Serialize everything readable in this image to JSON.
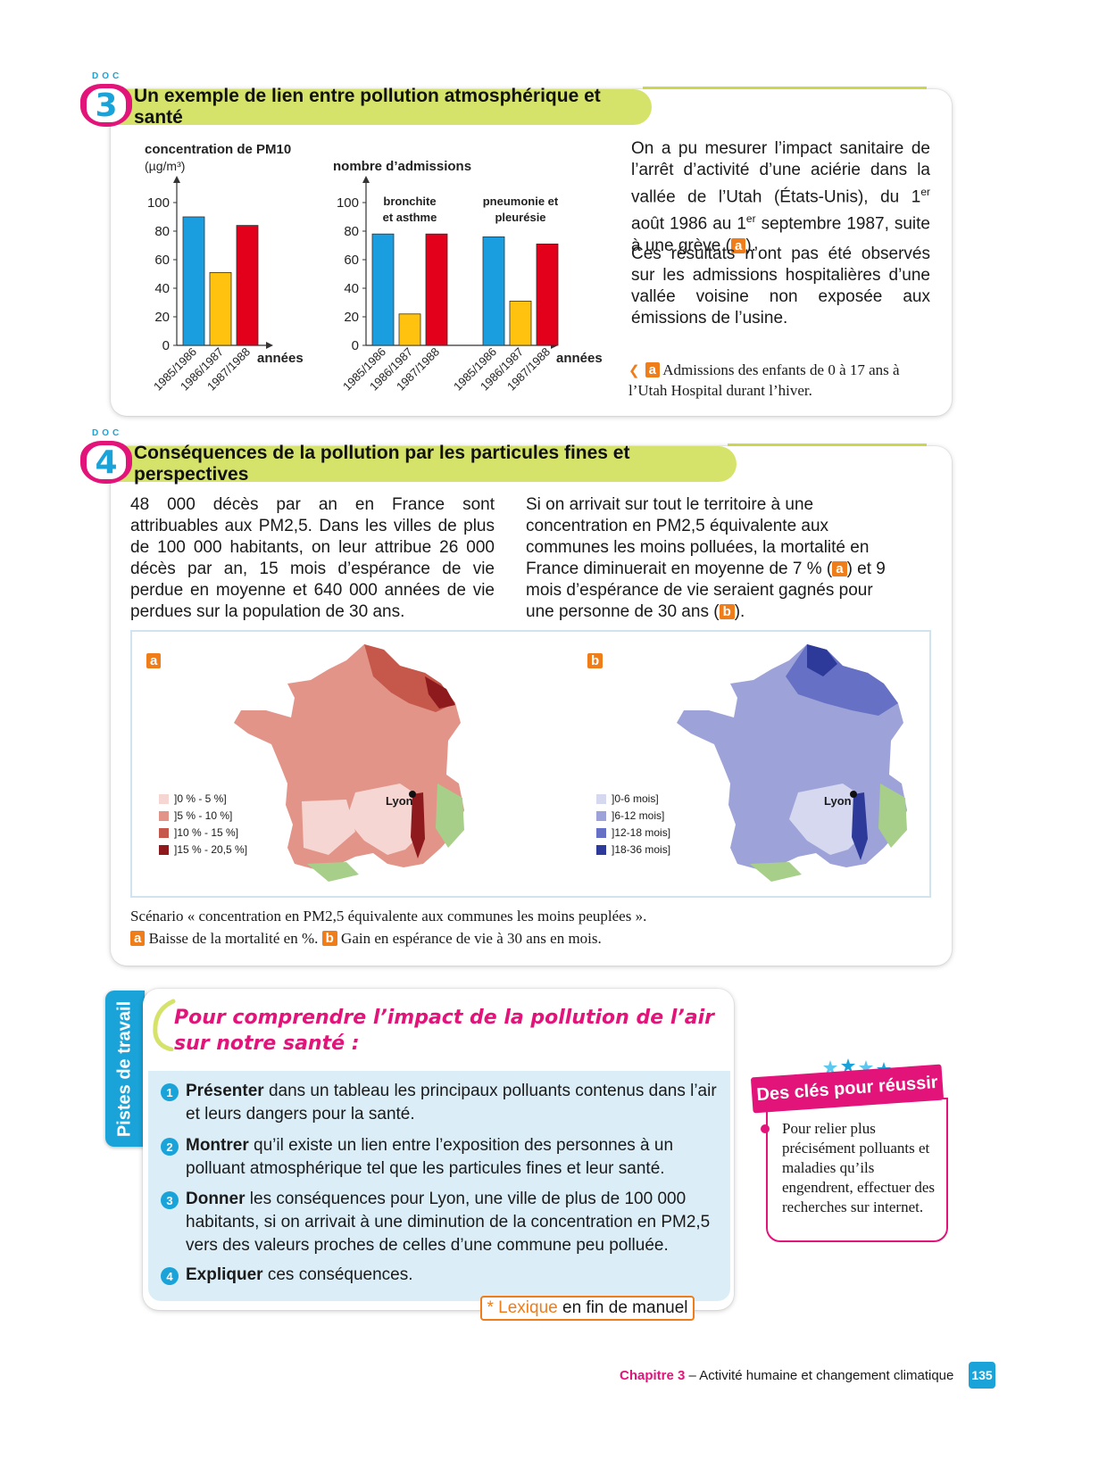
{
  "doc3": {
    "doc_word": "DOC",
    "number": "3",
    "title": "Un exemple de lien entre pollution atmosphérique et santé",
    "paragraph1_parts": [
      "On a pu mesurer l’impact sanitaire de l’arrêt d’activité d’une aciérie dans la vallée de l’Utah (États-Unis), du 1",
      "er",
      " août 1986 au 1",
      "er",
      " septembre 1987, suite à une grève (",
      "a",
      ")."
    ],
    "paragraph2": "Ces résultats n’ont pas été observés sur les admissions hospitalières d’une vallée voisine non exposée aux émissions de l’usine.",
    "caption_letter": "a",
    "caption": "Admissions des enfants de 0 à 17 ans à l’Utah Hospital durant l’hiver."
  },
  "chart_data": [
    {
      "type": "bar",
      "ylabel": "concentration de PM10",
      "yunit": "(µg/m³)",
      "xlabel": "années",
      "categories": [
        "1985/1986",
        "1986/1987",
        "1987/1988"
      ],
      "values": [
        90,
        51,
        84
      ],
      "colors": [
        "#1b9ee0",
        "#ffc20e",
        "#e3001b"
      ],
      "ylim": [
        0,
        100
      ],
      "yticks": [
        0,
        20,
        40,
        60,
        80,
        100
      ]
    },
    {
      "type": "bar",
      "ylabel": "nombre d’admissions",
      "xlabel": "années",
      "groups": [
        {
          "name_lines": [
            "bronchite",
            "et asthme"
          ],
          "categories": [
            "1985/1986",
            "1986/1987",
            "1987/1988"
          ],
          "values": [
            78,
            22,
            78
          ]
        },
        {
          "name_lines": [
            "pneumonie et",
            "pleurésie"
          ],
          "categories": [
            "1985/1986",
            "1986/1987",
            "1987/1988"
          ],
          "values": [
            76,
            31,
            71
          ]
        }
      ],
      "colors": [
        "#1b9ee0",
        "#ffc20e",
        "#e3001b"
      ],
      "ylim": [
        0,
        100
      ],
      "yticks": [
        0,
        20,
        40,
        60,
        80,
        100
      ]
    }
  ],
  "doc4": {
    "doc_word": "DOC",
    "number": "4",
    "title": "Conséquences de la pollution par les particules fines et perspectives",
    "left_text": "48 000 décès par an en France sont attribuables aux PM2,5. Dans les villes de plus de 100 000 habitants, on leur attribue 26 000 décès par an, 15 mois d’espérance de vie perdue en moyenne et 640 000 années de vie perdues sur la population de 30 ans.",
    "right_text_parts": [
      "Si on arrivait sur tout le territoire à une concentration en PM2,5 équivalente aux communes les moins polluées, la mortalité en France diminuerait en moyenne de 7 % (",
      "a",
      ") et 9 mois d’espérance de vie seraient gagnés pour une personne de 30 ans (",
      "b",
      ")."
    ],
    "map_a": {
      "letter": "a",
      "city": "Lyon",
      "legend": [
        {
          "label": "]0 % - 5 %]",
          "color": "#f6d6d2"
        },
        {
          "label": "]5 % - 10 %]",
          "color": "#e29489"
        },
        {
          "label": "]10 % - 15 %]",
          "color": "#c5584a"
        },
        {
          "label": "]15 % - 20,5 %]",
          "color": "#8e1a1d"
        }
      ]
    },
    "map_b": {
      "letter": "b",
      "city": "Lyon",
      "legend": [
        {
          "label": "]0-6 mois]",
          "color": "#d6d8f0"
        },
        {
          "label": "]6-12 mois]",
          "color": "#9da3d8"
        },
        {
          "label": "]12-18 mois]",
          "color": "#6670c4"
        },
        {
          "label": "]18-36 mois]",
          "color": "#2e3a9a"
        }
      ]
    },
    "scenario_caption": "Scénario « concentration en PM2,5 équivalente aux communes les moins peuplées ».",
    "caption_a_letter": "a",
    "caption_a": "Baisse de la mortalité en %.",
    "caption_b_letter": "b",
    "caption_b": "Gain en espérance de vie à 30 ans en mois."
  },
  "pistes": {
    "tab_label": "Pistes de travail",
    "heading_line1": "Pour comprendre l’impact de la pollution de l’air",
    "heading_line2": "sur notre santé :",
    "items": [
      {
        "num": "1",
        "verb": "Présenter",
        "rest": " dans un tableau les principaux polluants contenus dans l’air et leurs dangers pour la santé."
      },
      {
        "num": "2",
        "verb": "Montrer",
        "rest": " qu’il existe un lien entre l’exposition des personnes à un polluant atmosphérique tel que les particules fines et leur santé."
      },
      {
        "num": "3",
        "verb": "Donner",
        "rest": " les conséquences pour Lyon, une ville de plus de 100 000 habitants, si on arrivait à une diminution de la concentration en PM2,5 vers des valeurs proches de celles d’une commune peu polluée."
      },
      {
        "num": "4",
        "verb": "Expliquer",
        "rest": " ces conséquences."
      }
    ],
    "lexique_star": "* Lexique",
    "lexique_rest": " en fin de manuel"
  },
  "cles": {
    "title": "Des clés pour réussir",
    "text": "Pour relier plus précisément polluants et maladies qu’ils engendrent, effectuer des recherches sur internet."
  },
  "footer": {
    "chapter": "Chapitre 3",
    "title": " – Activité humaine et changement climatique",
    "page": "135"
  },
  "colors": {
    "blue": "#1aa3d8",
    "magenta": "#e2147a",
    "lime": "#d6e36a",
    "orange": "#ef7d1a",
    "light_blue_bg": "#dbeef8"
  }
}
